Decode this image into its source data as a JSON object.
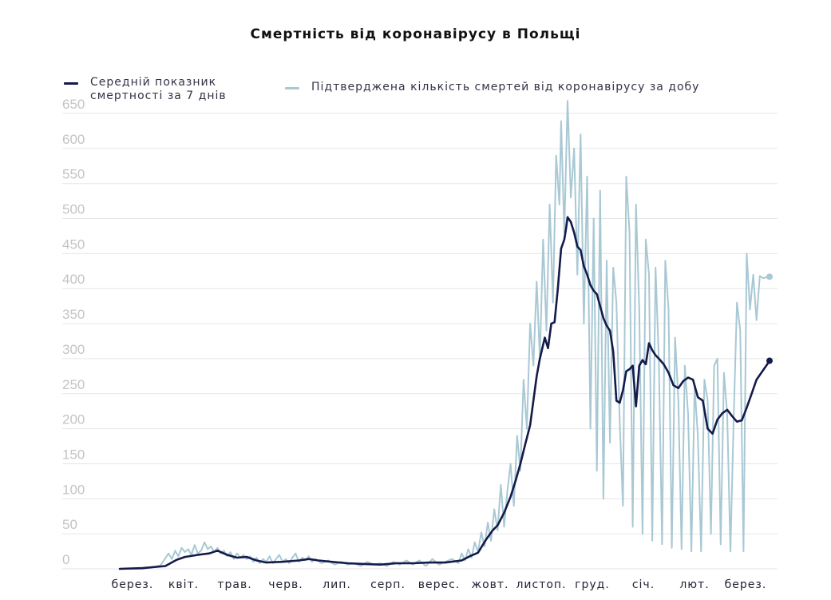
{
  "chart_data": {
    "type": "line",
    "title": "Смертність від коронавірусу в Польщі",
    "ylim": [
      0,
      650
    ],
    "y_ticks": [
      650,
      600,
      550,
      500,
      450,
      400,
      350,
      300,
      250,
      200,
      150,
      100,
      50,
      0
    ],
    "x_tick_labels": [
      "берез.",
      "квіт.",
      "трав.",
      "черв.",
      "лип.",
      "серп.",
      "верес.",
      "жовт.",
      "листоп.",
      "груд.",
      "січ.",
      "лют.",
      "берез."
    ],
    "grid": true,
    "legend_position": "top-left",
    "series": [
      {
        "name": "Середній показник\nсмертності за 7 днів",
        "color": "#141a4a",
        "style": "thick-line",
        "values": [
          [
            0,
            0
          ],
          [
            14,
            1
          ],
          [
            28,
            4
          ],
          [
            35,
            13
          ],
          [
            40,
            17
          ],
          [
            48,
            20
          ],
          [
            55,
            22
          ],
          [
            60,
            26
          ],
          [
            66,
            20
          ],
          [
            72,
            16
          ],
          [
            78,
            17
          ],
          [
            84,
            12
          ],
          [
            90,
            9
          ],
          [
            100,
            10
          ],
          [
            110,
            12
          ],
          [
            116,
            14
          ],
          [
            122,
            12
          ],
          [
            130,
            10
          ],
          [
            140,
            8
          ],
          [
            150,
            7
          ],
          [
            160,
            6
          ],
          [
            170,
            8
          ],
          [
            180,
            8
          ],
          [
            190,
            9
          ],
          [
            200,
            9
          ],
          [
            210,
            12
          ],
          [
            215,
            18
          ],
          [
            220,
            23
          ],
          [
            225,
            42
          ],
          [
            229,
            55
          ],
          [
            232,
            62
          ],
          [
            236,
            80
          ],
          [
            240,
            103
          ],
          [
            243,
            125
          ],
          [
            246,
            150
          ],
          [
            249,
            178
          ],
          [
            252,
            205
          ],
          [
            254,
            240
          ],
          [
            256,
            275
          ],
          [
            258,
            300
          ],
          [
            261,
            330
          ],
          [
            263,
            315
          ],
          [
            265,
            350
          ],
          [
            267,
            352
          ],
          [
            269,
            400
          ],
          [
            271,
            457
          ],
          [
            273,
            470
          ],
          [
            274,
            485
          ],
          [
            275,
            502
          ],
          [
            277,
            495
          ],
          [
            279,
            480
          ],
          [
            281,
            460
          ],
          [
            283,
            455
          ],
          [
            285,
            432
          ],
          [
            287,
            420
          ],
          [
            289,
            405
          ],
          [
            291,
            397
          ],
          [
            293,
            392
          ],
          [
            295,
            375
          ],
          [
            297,
            358
          ],
          [
            299,
            347
          ],
          [
            301,
            340
          ],
          [
            303,
            310
          ],
          [
            305,
            240
          ],
          [
            307,
            237
          ],
          [
            309,
            255
          ],
          [
            311,
            282
          ],
          [
            313,
            285
          ],
          [
            315,
            290
          ],
          [
            317,
            232
          ],
          [
            319,
            290
          ],
          [
            321,
            298
          ],
          [
            323,
            292
          ],
          [
            325,
            322
          ],
          [
            327,
            312
          ],
          [
            329,
            305
          ],
          [
            331,
            300
          ],
          [
            334,
            292
          ],
          [
            337,
            280
          ],
          [
            340,
            262
          ],
          [
            343,
            258
          ],
          [
            346,
            268
          ],
          [
            349,
            273
          ],
          [
            352,
            270
          ],
          [
            355,
            245
          ],
          [
            358,
            240
          ],
          [
            361,
            200
          ],
          [
            364,
            193
          ],
          [
            367,
            213
          ],
          [
            370,
            222
          ],
          [
            373,
            227
          ],
          [
            376,
            218
          ],
          [
            379,
            210
          ],
          [
            382,
            212
          ],
          [
            385,
            230
          ],
          [
            388,
            250
          ],
          [
            391,
            270
          ],
          [
            394,
            280
          ],
          [
            397,
            290
          ],
          [
            399,
            297
          ]
        ]
      },
      {
        "name": "Підтверджена кількість смертей від коронавірусу за добу",
        "color": "#a8c8d4",
        "style": "thin-line",
        "values": [
          [
            0,
            0
          ],
          [
            14,
            0
          ],
          [
            20,
            2
          ],
          [
            25,
            5
          ],
          [
            28,
            15
          ],
          [
            30,
            22
          ],
          [
            32,
            14
          ],
          [
            34,
            26
          ],
          [
            36,
            18
          ],
          [
            38,
            30
          ],
          [
            40,
            24
          ],
          [
            42,
            28
          ],
          [
            44,
            20
          ],
          [
            46,
            34
          ],
          [
            48,
            22
          ],
          [
            50,
            26
          ],
          [
            52,
            38
          ],
          [
            54,
            28
          ],
          [
            56,
            32
          ],
          [
            58,
            24
          ],
          [
            60,
            30
          ],
          [
            62,
            22
          ],
          [
            64,
            26
          ],
          [
            66,
            18
          ],
          [
            68,
            24
          ],
          [
            70,
            14
          ],
          [
            72,
            22
          ],
          [
            74,
            16
          ],
          [
            76,
            20
          ],
          [
            78,
            14
          ],
          [
            80,
            18
          ],
          [
            82,
            10
          ],
          [
            84,
            16
          ],
          [
            86,
            8
          ],
          [
            88,
            14
          ],
          [
            90,
            10
          ],
          [
            92,
            18
          ],
          [
            94,
            8
          ],
          [
            96,
            14
          ],
          [
            98,
            20
          ],
          [
            100,
            10
          ],
          [
            102,
            14
          ],
          [
            104,
            8
          ],
          [
            106,
            16
          ],
          [
            108,
            22
          ],
          [
            110,
            10
          ],
          [
            112,
            16
          ],
          [
            114,
            12
          ],
          [
            116,
            18
          ],
          [
            118,
            10
          ],
          [
            120,
            14
          ],
          [
            124,
            8
          ],
          [
            128,
            12
          ],
          [
            132,
            6
          ],
          [
            136,
            10
          ],
          [
            140,
            6
          ],
          [
            144,
            8
          ],
          [
            148,
            4
          ],
          [
            152,
            10
          ],
          [
            156,
            6
          ],
          [
            160,
            8
          ],
          [
            164,
            4
          ],
          [
            168,
            10
          ],
          [
            172,
            6
          ],
          [
            176,
            12
          ],
          [
            180,
            6
          ],
          [
            184,
            12
          ],
          [
            188,
            4
          ],
          [
            192,
            14
          ],
          [
            196,
            6
          ],
          [
            200,
            10
          ],
          [
            204,
            14
          ],
          [
            208,
            8
          ],
          [
            210,
            22
          ],
          [
            212,
            12
          ],
          [
            214,
            28
          ],
          [
            216,
            16
          ],
          [
            218,
            38
          ],
          [
            220,
            24
          ],
          [
            222,
            52
          ],
          [
            224,
            32
          ],
          [
            226,
            66
          ],
          [
            228,
            40
          ],
          [
            230,
            85
          ],
          [
            232,
            55
          ],
          [
            234,
            120
          ],
          [
            236,
            60
          ],
          [
            238,
            110
          ],
          [
            240,
            150
          ],
          [
            242,
            90
          ],
          [
            244,
            190
          ],
          [
            246,
            140
          ],
          [
            248,
            270
          ],
          [
            250,
            200
          ],
          [
            252,
            350
          ],
          [
            254,
            290
          ],
          [
            256,
            410
          ],
          [
            258,
            300
          ],
          [
            260,
            470
          ],
          [
            262,
            340
          ],
          [
            264,
            520
          ],
          [
            266,
            380
          ],
          [
            268,
            590
          ],
          [
            270,
            520
          ],
          [
            271,
            639
          ],
          [
            273,
            480
          ],
          [
            275,
            668
          ],
          [
            277,
            530
          ],
          [
            279,
            600
          ],
          [
            281,
            420
          ],
          [
            283,
            620
          ],
          [
            285,
            350
          ],
          [
            287,
            560
          ],
          [
            289,
            200
          ],
          [
            291,
            500
          ],
          [
            293,
            140
          ],
          [
            295,
            540
          ],
          [
            297,
            100
          ],
          [
            299,
            440
          ],
          [
            301,
            180
          ],
          [
            303,
            430
          ],
          [
            305,
            380
          ],
          [
            307,
            210
          ],
          [
            309,
            90
          ],
          [
            311,
            560
          ],
          [
            313,
            480
          ],
          [
            315,
            60
          ],
          [
            317,
            520
          ],
          [
            319,
            370
          ],
          [
            321,
            50
          ],
          [
            323,
            470
          ],
          [
            325,
            420
          ],
          [
            327,
            40
          ],
          [
            329,
            430
          ],
          [
            331,
            300
          ],
          [
            333,
            35
          ],
          [
            335,
            440
          ],
          [
            337,
            370
          ],
          [
            339,
            30
          ],
          [
            341,
            330
          ],
          [
            343,
            240
          ],
          [
            345,
            28
          ],
          [
            347,
            290
          ],
          [
            349,
            220
          ],
          [
            351,
            25
          ],
          [
            353,
            260
          ],
          [
            355,
            190
          ],
          [
            357,
            25
          ],
          [
            359,
            270
          ],
          [
            361,
            240
          ],
          [
            363,
            50
          ],
          [
            365,
            290
          ],
          [
            367,
            300
          ],
          [
            369,
            35
          ],
          [
            371,
            280
          ],
          [
            373,
            220
          ],
          [
            375,
            25
          ],
          [
            377,
            215
          ],
          [
            379,
            380
          ],
          [
            381,
            340
          ],
          [
            383,
            25
          ],
          [
            385,
            450
          ],
          [
            387,
            370
          ],
          [
            389,
            420
          ],
          [
            391,
            355
          ],
          [
            393,
            418
          ],
          [
            395,
            415
          ],
          [
            399,
            417
          ]
        ]
      }
    ]
  }
}
